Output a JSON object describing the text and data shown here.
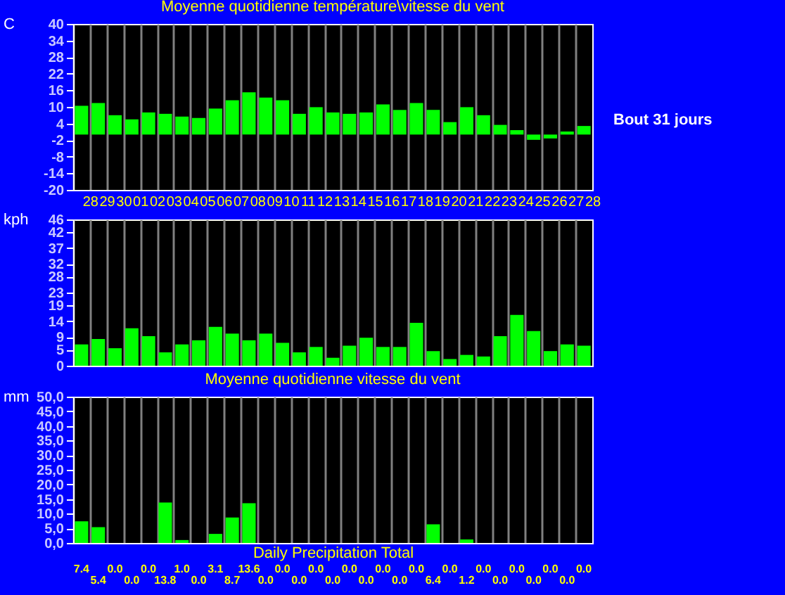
{
  "chart_data": [
    {
      "type": "bar",
      "title": "Moyenne quotidienne température\\vitesse du vent",
      "ylabel": "C",
      "categories": [
        "28",
        "29",
        "30",
        "01",
        "02",
        "03",
        "04",
        "05",
        "06",
        "07",
        "08",
        "09",
        "10",
        "11",
        "12",
        "13",
        "14",
        "15",
        "16",
        "17",
        "18",
        "19",
        "20",
        "21",
        "22",
        "23",
        "24",
        "25",
        "26",
        "27",
        "28"
      ],
      "values": [
        10.4,
        11.4,
        7.0,
        5.5,
        8.0,
        7.5,
        6.5,
        6.0,
        9.4,
        12.4,
        15.3,
        13.4,
        12.4,
        7.5,
        9.9,
        8.0,
        7.5,
        8.0,
        10.9,
        8.9,
        11.4,
        8.9,
        4.5,
        9.9,
        7.0,
        3.5,
        1.6,
        -1.9,
        -1.4,
        1.1,
        3.1
      ],
      "color": "#00ff00",
      "ylim": [
        -20,
        40
      ],
      "yticks": [
        -20,
        -14,
        -8,
        -2,
        4,
        10,
        16,
        22,
        28,
        34,
        40
      ],
      "grid": "x",
      "annotations": [
        "Bout 31 jours"
      ]
    },
    {
      "type": "bar",
      "ylabel": "kph",
      "categories": [
        "28",
        "29",
        "30",
        "01",
        "02",
        "03",
        "04",
        "05",
        "06",
        "07",
        "08",
        "09",
        "10",
        "11",
        "12",
        "13",
        "14",
        "15",
        "16",
        "17",
        "18",
        "19",
        "20",
        "21",
        "22",
        "23",
        "24",
        "25",
        "26",
        "27",
        "28"
      ],
      "values": [
        6.7,
        8.4,
        5.5,
        11.8,
        9.3,
        4.2,
        6.7,
        8.0,
        12.2,
        10.1,
        8.0,
        10.1,
        7.2,
        4.2,
        5.9,
        2.5,
        6.3,
        8.8,
        5.9,
        5.9,
        13.5,
        4.6,
        2.1,
        3.4,
        2.9,
        9.3,
        16.0,
        10.9,
        4.6,
        6.7,
        6.3
      ],
      "color": "#00ff00",
      "ylim": [
        0,
        46
      ],
      "yticks": [
        0,
        5,
        9,
        14,
        19,
        23,
        28,
        32,
        37,
        42,
        46
      ],
      "grid": "x",
      "tick_labels": "y"
    },
    {
      "type": "bar",
      "title": "Moyenne quotidienne vitesse du vent",
      "xlabel": "Daily Precipitation Total",
      "ylabel": "mm",
      "categories": [
        "28",
        "29",
        "30",
        "01",
        "02",
        "03",
        "04",
        "05",
        "06",
        "07",
        "08",
        "09",
        "10",
        "11",
        "12",
        "13",
        "14",
        "15",
        "16",
        "17",
        "18",
        "19",
        "20",
        "21",
        "22",
        "23",
        "24",
        "25",
        "26",
        "27",
        "28"
      ],
      "values": [
        7.4,
        5.4,
        0.0,
        0.0,
        0.0,
        13.8,
        1.0,
        0.0,
        3.1,
        8.7,
        13.6,
        0.0,
        0.0,
        0.0,
        0.0,
        0.0,
        0.0,
        0.0,
        0.0,
        0.0,
        0.0,
        6.4,
        0.0,
        1.2,
        0.0,
        0.0,
        0.0,
        0.0,
        0.0,
        0.0,
        0.0
      ],
      "value_labels": [
        "7.4",
        "5.4",
        "0.0",
        "0.0",
        "0.0",
        "13.8",
        "1.0",
        "0.0",
        "3.1",
        "8.7",
        "13.6",
        "0.0",
        "0.0",
        "0.0",
        "0.0",
        "0.0",
        "0.0",
        "0.0",
        "0.0",
        "0.0",
        "0.0",
        "6.4",
        "0.0",
        "1.2",
        "0.0",
        "0.0",
        "0.0",
        "0.0",
        "0.0",
        "0.0",
        "0.0"
      ],
      "color": "#00ff00",
      "ylim": [
        0,
        50
      ],
      "yticks": [
        {
          "value": 0,
          "label": "0,0"
        },
        {
          "value": 5,
          "label": "5,0"
        },
        {
          "value": 10,
          "label": "10,0"
        },
        {
          "value": 15,
          "label": "15,0"
        },
        {
          "value": 20,
          "label": "20,0"
        },
        {
          "value": 25,
          "label": "25,0"
        },
        {
          "value": 30,
          "label": "30,0"
        },
        {
          "value": 35,
          "label": "35,0"
        },
        {
          "value": 40,
          "label": "40,0"
        },
        {
          "value": 45,
          "label": "45,0"
        },
        {
          "value": 50,
          "label": "50,0"
        }
      ],
      "grid": "x",
      "tick_labels": "y"
    }
  ]
}
